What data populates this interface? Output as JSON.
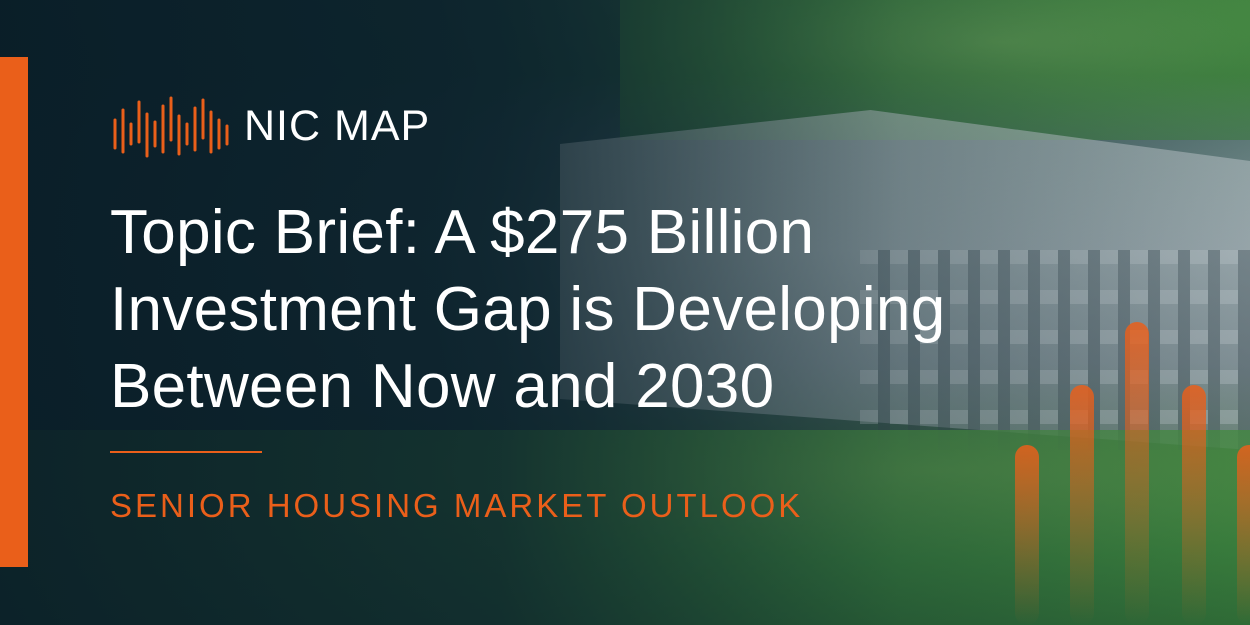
{
  "brand": {
    "logo_text": "NIC MAP",
    "logo_icon": "waveform-bars-icon",
    "accent_color": "#ea5f1a"
  },
  "headline": {
    "lines": [
      "Topic Brief: A $275 Billion",
      "Investment Gap is Developing",
      "Between Now and 2030"
    ]
  },
  "subtitle": "SENIOR HOUSING MARKET OUTLOOK",
  "background": {
    "image": "aerial-photo-senior-housing-building",
    "overlay_color": "#0f2a33"
  }
}
